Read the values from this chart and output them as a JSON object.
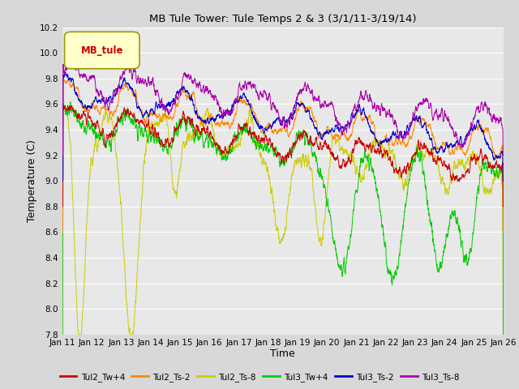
{
  "title": "MB Tule Tower: Tule Temps 2 & 3 (3/1/11-3/19/14)",
  "xlabel": "Time",
  "ylabel": "Temperature (C)",
  "ylim": [
    7.8,
    10.2
  ],
  "xlim": [
    0,
    15
  ],
  "xtick_labels": [
    "Jan 11",
    "Jan 12",
    "Jan 13",
    "Jan 14",
    "Jan 15",
    "Jan 16",
    "Jan 17",
    "Jan 18",
    "Jan 19",
    "Jan 20",
    "Jan 21",
    "Jan 22",
    "Jan 23",
    "Jan 24",
    "Jan 25",
    "Jan 26"
  ],
  "ytick_values": [
    7.8,
    8.0,
    8.2,
    8.4,
    8.6,
    8.8,
    9.0,
    9.2,
    9.4,
    9.6,
    9.8,
    10.0,
    10.2
  ],
  "legend_label": "MB_tule",
  "series_colors": {
    "Tul2_Tw+4": "#cc0000",
    "Tul2_Ts-2": "#ff8800",
    "Tul2_Ts-8": "#cccc00",
    "Tul3_Tw+4": "#00cc00",
    "Tul3_Ts-2": "#0000cc",
    "Tul3_Ts-8": "#aa00aa"
  },
  "background_color": "#e8e8e8",
  "grid_color": "#ffffff",
  "fig_bg": "#d8d8d8",
  "seed": 12345
}
